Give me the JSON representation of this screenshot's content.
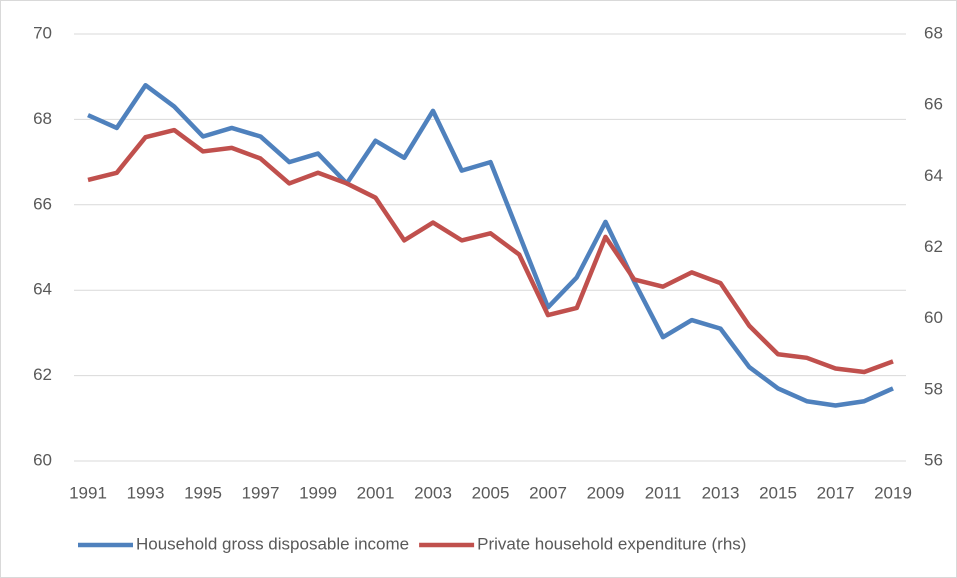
{
  "chart_data": {
    "type": "line",
    "x": [
      1991,
      1992,
      1993,
      1994,
      1995,
      1996,
      1997,
      1998,
      1999,
      2000,
      2001,
      2002,
      2003,
      2004,
      2005,
      2006,
      2007,
      2008,
      2009,
      2010,
      2011,
      2012,
      2013,
      2014,
      2015,
      2016,
      2017,
      2018,
      2019
    ],
    "xlim": [
      1991,
      2019
    ],
    "xticks": [
      1991,
      1993,
      1995,
      1997,
      1999,
      2001,
      2003,
      2005,
      2007,
      2009,
      2011,
      2013,
      2015,
      2017,
      2019
    ],
    "ylim": [
      60,
      70
    ],
    "yticks": [
      60,
      62,
      64,
      66,
      68,
      70
    ],
    "y2lim": [
      56,
      68
    ],
    "y2ticks": [
      56,
      58,
      60,
      62,
      64,
      66,
      68
    ],
    "grid": true,
    "legend": "bottom",
    "series": [
      {
        "name": "Household gross disposable income",
        "color": "#4f81bd",
        "values": [
          68.1,
          67.8,
          68.8,
          68.3,
          67.6,
          67.8,
          67.6,
          67.0,
          67.2,
          66.5,
          67.5,
          67.1,
          68.2,
          66.8,
          67.0,
          65.3,
          63.6,
          64.3,
          65.6,
          64.2,
          62.9,
          63.3,
          63.1,
          62.2,
          61.7,
          61.4,
          61.3,
          61.4,
          61.7
        ]
      },
      {
        "name": "Private household expenditure (rhs)",
        "color": "#c0504d",
        "axis": "y2",
        "values": [
          63.9,
          64.1,
          65.1,
          65.3,
          64.7,
          64.8,
          64.5,
          63.8,
          64.1,
          63.8,
          63.4,
          62.2,
          62.7,
          62.2,
          62.4,
          61.8,
          60.1,
          60.3,
          62.3,
          61.1,
          60.9,
          61.3,
          61.0,
          59.8,
          59.0,
          58.9,
          58.6,
          58.5,
          58.8
        ]
      }
    ]
  }
}
